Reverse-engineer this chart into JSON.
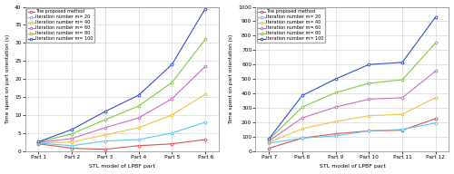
{
  "left": {
    "x_labels": [
      "Part 1",
      "Part 2",
      "Part 3",
      "Part 4",
      "Part 5",
      "Part 6"
    ],
    "xlabel": "STL model of LPBF part",
    "ylabel": "Time spent on part orientation (s)",
    "ylim": [
      0,
      40
    ],
    "yticks": [
      0,
      5,
      10,
      15,
      20,
      25,
      30,
      35,
      40
    ],
    "series": {
      "The proposed method": [
        2.0,
        0.8,
        0.5,
        1.5,
        2.0,
        3.2
      ],
      "Iteration number m= 20": [
        2.2,
        1.5,
        2.8,
        3.2,
        5.0,
        8.0
      ],
      "Iteration number m= 40": [
        2.3,
        2.5,
        4.5,
        6.5,
        10.0,
        15.8
      ],
      "Iteration number m= 60": [
        2.4,
        3.5,
        6.5,
        9.2,
        14.5,
        23.5
      ],
      "Iteration number m= 80": [
        2.5,
        4.8,
        8.7,
        12.5,
        19.0,
        31.0
      ],
      "Iteration number m= 100": [
        2.6,
        6.0,
        11.0,
        15.5,
        24.0,
        39.5
      ]
    },
    "colors": {
      "The proposed method": "#d9534f",
      "Iteration number m= 20": "#5bc8f5",
      "Iteration number m= 40": "#f0c040",
      "Iteration number m= 60": "#c86cc8",
      "Iteration number m= 80": "#80c840",
      "Iteration number m= 100": "#3050d0"
    }
  },
  "right": {
    "x_labels": [
      "Part 7",
      "Part 8",
      "Part 9",
      "Part 10",
      "Part 11",
      "Part 12"
    ],
    "xlabel": "STL model of LPBF part",
    "ylabel": "Time spent on part orientation (s)",
    "ylim": [
      0,
      1000
    ],
    "yticks": [
      0,
      100,
      200,
      300,
      400,
      500,
      600,
      700,
      800,
      900,
      1000
    ],
    "series": {
      "The proposed method": [
        20,
        90,
        120,
        140,
        145,
        225
      ],
      "Iteration number m= 20": [
        55,
        90,
        105,
        140,
        150,
        195
      ],
      "Iteration number m= 40": [
        60,
        155,
        205,
        245,
        255,
        370
      ],
      "Iteration number m= 60": [
        70,
        230,
        305,
        360,
        370,
        555
      ],
      "Iteration number m= 80": [
        80,
        305,
        405,
        470,
        495,
        750
      ],
      "Iteration number m= 100": [
        85,
        385,
        500,
        600,
        615,
        930
      ]
    },
    "colors": {
      "The proposed method": "#d9534f",
      "Iteration number m= 20": "#5bc8f5",
      "Iteration number m= 40": "#f0c040",
      "Iteration number m= 60": "#c86cc8",
      "Iteration number m= 80": "#80c840",
      "Iteration number m= 100": "#3050d0"
    }
  },
  "legend_order": [
    "The proposed method",
    "Iteration number m= 20",
    "Iteration number m= 40",
    "Iteration number m= 60",
    "Iteration number m= 80",
    "Iteration number m= 100"
  ],
  "bg_color": "#ffffff",
  "grid_color": "#d8d8d8"
}
